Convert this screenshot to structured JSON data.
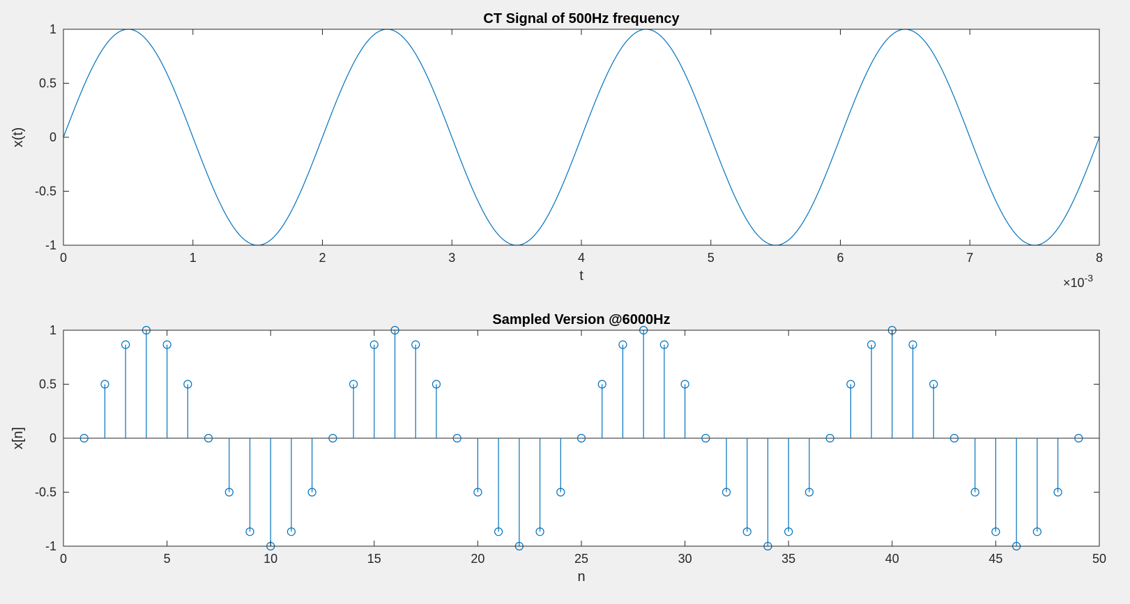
{
  "colors": {
    "series": "#0072bd",
    "axes_bg": "#ffffff",
    "figure_bg": "#f0f0f0",
    "axis_line": "#262626"
  },
  "chart_data": [
    {
      "type": "line",
      "title": "CT Signal of 500Hz frequency",
      "xlabel": "t",
      "ylabel": "x(t)",
      "x_exponent_label": "×10",
      "x_exponent_power": "-3",
      "xlim": [
        0,
        8
      ],
      "ylim": [
        -1,
        1
      ],
      "x_scale": 0.001,
      "x_ticks": [
        0,
        1,
        2,
        3,
        4,
        5,
        6,
        7,
        8
      ],
      "x_tick_labels": [
        "0",
        "1",
        "2",
        "3",
        "4",
        "5",
        "6",
        "7",
        "8"
      ],
      "y_ticks": [
        -1,
        -0.5,
        0,
        0.5,
        1
      ],
      "y_tick_labels": [
        "-1",
        "-0.5",
        "0",
        "0.5",
        "1"
      ],
      "grid": false,
      "series": [
        {
          "function": "sin(2*pi*500*t)",
          "frequency_hz": 500,
          "amplitude": 1,
          "t_start": 0,
          "t_end": 0.008
        }
      ]
    },
    {
      "type": "stem",
      "title": "Sampled Version @6000Hz",
      "xlabel": "n",
      "ylabel": "x[n]",
      "xlim": [
        0,
        50
      ],
      "ylim": [
        -1,
        1
      ],
      "x_ticks": [
        0,
        5,
        10,
        15,
        20,
        25,
        30,
        35,
        40,
        45,
        50
      ],
      "x_tick_labels": [
        "0",
        "5",
        "10",
        "15",
        "20",
        "25",
        "30",
        "35",
        "40",
        "45",
        "50"
      ],
      "y_ticks": [
        -1,
        -0.5,
        0,
        0.5,
        1
      ],
      "y_tick_labels": [
        "-1",
        "-0.5",
        "0",
        "0.5",
        "1"
      ],
      "grid": false,
      "series": [
        {
          "x": [
            1,
            2,
            3,
            4,
            5,
            6,
            7,
            8,
            9,
            10,
            11,
            12,
            13,
            14,
            15,
            16,
            17,
            18,
            19,
            20,
            21,
            22,
            23,
            24,
            25,
            26,
            27,
            28,
            29,
            30,
            31,
            32,
            33,
            34,
            35,
            36,
            37,
            38,
            39,
            40,
            41,
            42,
            43,
            44,
            45,
            46,
            47,
            48,
            49
          ],
          "values": [
            0,
            0.5,
            0.866,
            1,
            0.866,
            0.5,
            0,
            -0.5,
            -0.866,
            -1,
            -0.866,
            -0.5,
            0,
            0.5,
            0.866,
            1,
            0.866,
            0.5,
            0,
            -0.5,
            -0.866,
            -1,
            -0.866,
            -0.5,
            0,
            0.5,
            0.866,
            1,
            0.866,
            0.5,
            0,
            -0.5,
            -0.866,
            -1,
            -0.866,
            -0.5,
            0,
            0.5,
            0.866,
            1,
            0.866,
            0.5,
            0,
            -0.5,
            -0.866,
            -1,
            -0.866,
            -0.5,
            0
          ]
        }
      ]
    }
  ]
}
